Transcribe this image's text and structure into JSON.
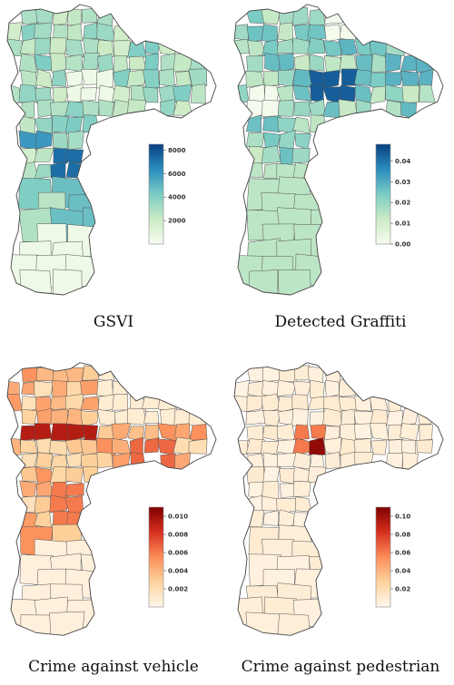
{
  "panels": [
    {
      "id": "gsvi",
      "caption": "GSVI",
      "colormap": [
        "#f7fcf0",
        "#ccebc5",
        "#7bccc4",
        "#2b8cbe",
        "#084081"
      ],
      "colorbar_ticks": [
        "8000",
        "6000",
        "4000",
        "2000"
      ],
      "legend_values": [
        2000,
        4000,
        6000,
        8000
      ],
      "legend_range": [
        0,
        8500
      ]
    },
    {
      "id": "graffiti",
      "caption": "Detected Graffiti",
      "colormap": [
        "#f7fcf0",
        "#ccebc5",
        "#7bccc4",
        "#2b8cbe",
        "#084081"
      ],
      "colorbar_ticks": [
        "0.04",
        "0.03",
        "0.02",
        "0.01",
        "0.00"
      ],
      "legend_values": [
        0.0,
        0.01,
        0.02,
        0.03,
        0.04
      ],
      "legend_range": [
        0,
        0.048
      ]
    },
    {
      "id": "vehicle",
      "caption": "Crime against vehicle",
      "colormap": [
        "#fff7ec",
        "#fdd49e",
        "#fc8d59",
        "#d7301f",
        "#7f0000"
      ],
      "colorbar_ticks": [
        "0.010",
        "0.008",
        "0.006",
        "0.004",
        "0.002"
      ],
      "legend_values": [
        0.002,
        0.004,
        0.006,
        0.008,
        0.01
      ],
      "legend_range": [
        0,
        0.011
      ]
    },
    {
      "id": "pedestrian",
      "caption": "Crime against pedestrian",
      "colormap": [
        "#fff7ec",
        "#fdd49e",
        "#fc8d59",
        "#d7301f",
        "#7f0000"
      ],
      "colorbar_ticks": [
        "0.10",
        "0.08",
        "0.06",
        "0.04",
        "0.02"
      ],
      "legend_values": [
        0.02,
        0.04,
        0.06,
        0.08,
        0.1
      ],
      "legend_range": [
        0,
        0.11
      ]
    }
  ]
}
